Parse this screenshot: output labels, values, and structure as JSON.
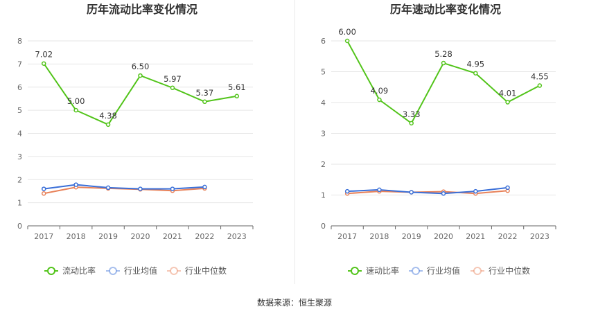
{
  "footer": {
    "source_text": "数据来源：恒生聚源"
  },
  "chart_data": [
    {
      "type": "line",
      "title": "历年流动比率变化情况",
      "categories": [
        "2017",
        "2018",
        "2019",
        "2020",
        "2021",
        "2022",
        "2023"
      ],
      "ylim": [
        0,
        8
      ],
      "yticks": [
        0,
        1,
        2,
        3,
        4,
        5,
        6,
        7,
        8
      ],
      "grid": true,
      "legend_position": "bottom",
      "series": [
        {
          "name": "流动比率",
          "color": "#52c41a",
          "values": [
            7.02,
            5.0,
            4.38,
            6.5,
            5.97,
            5.37,
            5.61
          ],
          "labels": [
            "7.02",
            "5.00",
            "4.38",
            "6.50",
            "5.97",
            "5.37",
            "5.61"
          ]
        },
        {
          "name": "行业均值",
          "color": "#3a6fd8",
          "values": [
            1.6,
            1.78,
            1.65,
            1.6,
            1.6,
            1.68,
            null
          ]
        },
        {
          "name": "行业中位数",
          "color": "#e8825a",
          "values": [
            1.4,
            1.67,
            1.62,
            1.58,
            1.52,
            1.62,
            null
          ]
        }
      ]
    },
    {
      "type": "line",
      "title": "历年速动比率变化情况",
      "categories": [
        "2017",
        "2018",
        "2019",
        "2020",
        "2021",
        "2022",
        "2023"
      ],
      "ylim": [
        0,
        6
      ],
      "yticks": [
        0,
        1,
        2,
        3,
        4,
        5,
        6
      ],
      "grid": true,
      "legend_position": "bottom",
      "series": [
        {
          "name": "速动比率",
          "color": "#52c41a",
          "values": [
            6.0,
            4.09,
            3.33,
            5.28,
            4.95,
            4.01,
            4.55
          ],
          "labels": [
            "6.00",
            "4.09",
            "3.33",
            "5.28",
            "4.95",
            "4.01",
            "4.55"
          ]
        },
        {
          "name": "行业均值",
          "color": "#3a6fd8",
          "values": [
            1.12,
            1.17,
            1.09,
            1.05,
            1.12,
            1.24,
            null
          ]
        },
        {
          "name": "行业中位数",
          "color": "#e8825a",
          "values": [
            1.05,
            1.12,
            1.09,
            1.11,
            1.05,
            1.14,
            null
          ]
        }
      ]
    }
  ]
}
